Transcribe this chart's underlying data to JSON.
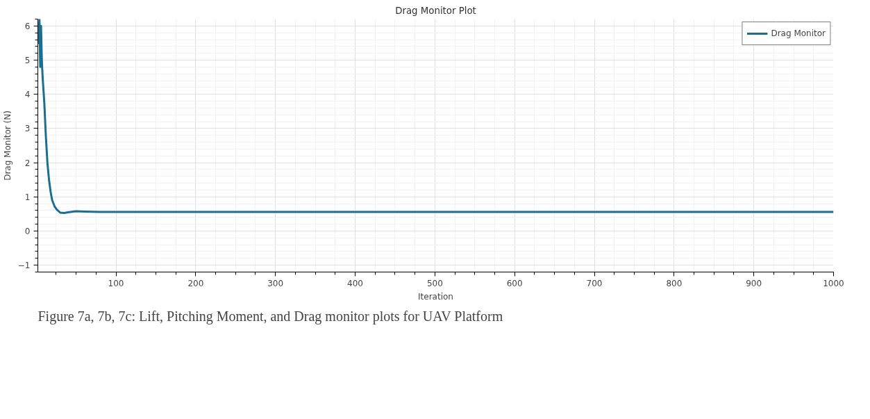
{
  "chart_data": {
    "type": "line",
    "title": "Drag Monitor Plot",
    "xlabel": "Iteration",
    "ylabel": "Drag Monitor (N)",
    "x": [
      2,
      3,
      4,
      5,
      6,
      7,
      8,
      10,
      12,
      14,
      16,
      18,
      20,
      23,
      26,
      30,
      35,
      40,
      50,
      60,
      80,
      1000
    ],
    "series": [
      {
        "name": "Drag Monitor",
        "color": "#1a6e8e",
        "values": [
          6.1,
          5.5,
          6.2,
          4.8,
          6.0,
          5.0,
          4.5,
          3.8,
          2.8,
          2.0,
          1.5,
          1.15,
          0.9,
          0.72,
          0.62,
          0.54,
          0.53,
          0.55,
          0.58,
          0.57,
          0.56,
          0.56
        ]
      }
    ],
    "xlim": [
      2,
      1000
    ],
    "ylim": [
      -1.2,
      6.2
    ],
    "xticks": [
      100,
      200,
      300,
      400,
      500,
      600,
      700,
      800,
      900,
      1000
    ],
    "yticks": [
      -1,
      0,
      1,
      2,
      3,
      4,
      5,
      6
    ],
    "grid": true,
    "legend": "top right",
    "marker": "none",
    "line_style": "solid",
    "annotations": [
      "Figure 7a, 7b, 7c:  Lift, Pitching Moment, and Drag monitor plots for UAV Platform"
    ]
  }
}
